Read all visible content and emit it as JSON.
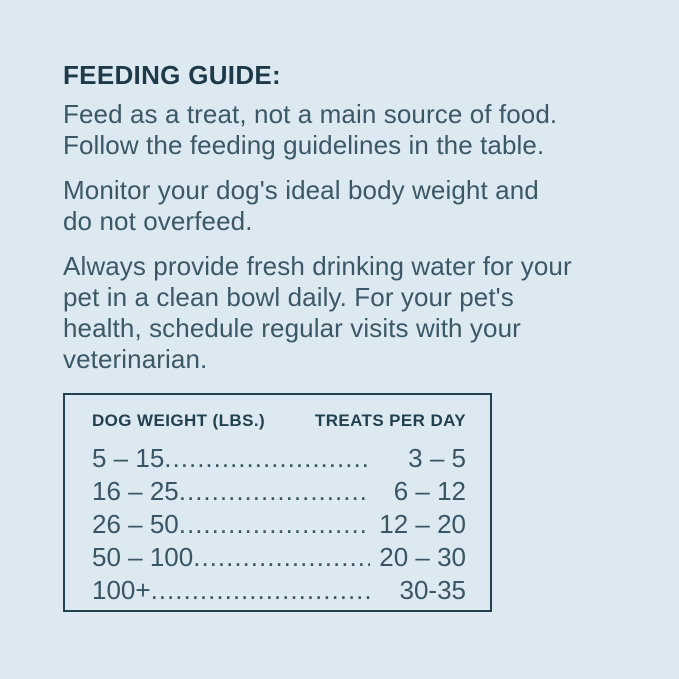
{
  "guide": {
    "title": "FEEDING GUIDE:",
    "paragraphs": [
      {
        "lines": [
          "Feed as a treat, not a main source of food.",
          "Follow the feeding guidelines in the table."
        ]
      },
      {
        "lines": [
          "Monitor your dog's ideal body weight and",
          "do not overfeed."
        ]
      },
      {
        "lines": [
          "Always provide fresh drinking water for your",
          "pet in a clean bowl daily. For your pet's",
          "health, schedule regular visits with your",
          "veterinarian."
        ]
      }
    ]
  },
  "table": {
    "header_left": "DOG WEIGHT (LBS.)",
    "header_right": "TREATS PER DAY",
    "leader_dots": "................................................................................",
    "rows": [
      {
        "weight": "5 – 15",
        "treats": "3 – 5"
      },
      {
        "weight": "16 – 25",
        "treats": "6 – 12"
      },
      {
        "weight": "26 – 50",
        "treats": "12 – 20"
      },
      {
        "weight": "50 – 100",
        "treats": "20 – 30"
      },
      {
        "weight": "100+",
        "treats": "30-35"
      }
    ]
  },
  "colors": {
    "background": "#dde9f0",
    "heading_text": "#1e3a49",
    "body_text": "#3c5866",
    "table_border": "#24414f",
    "table_text": "#3a5563"
  }
}
